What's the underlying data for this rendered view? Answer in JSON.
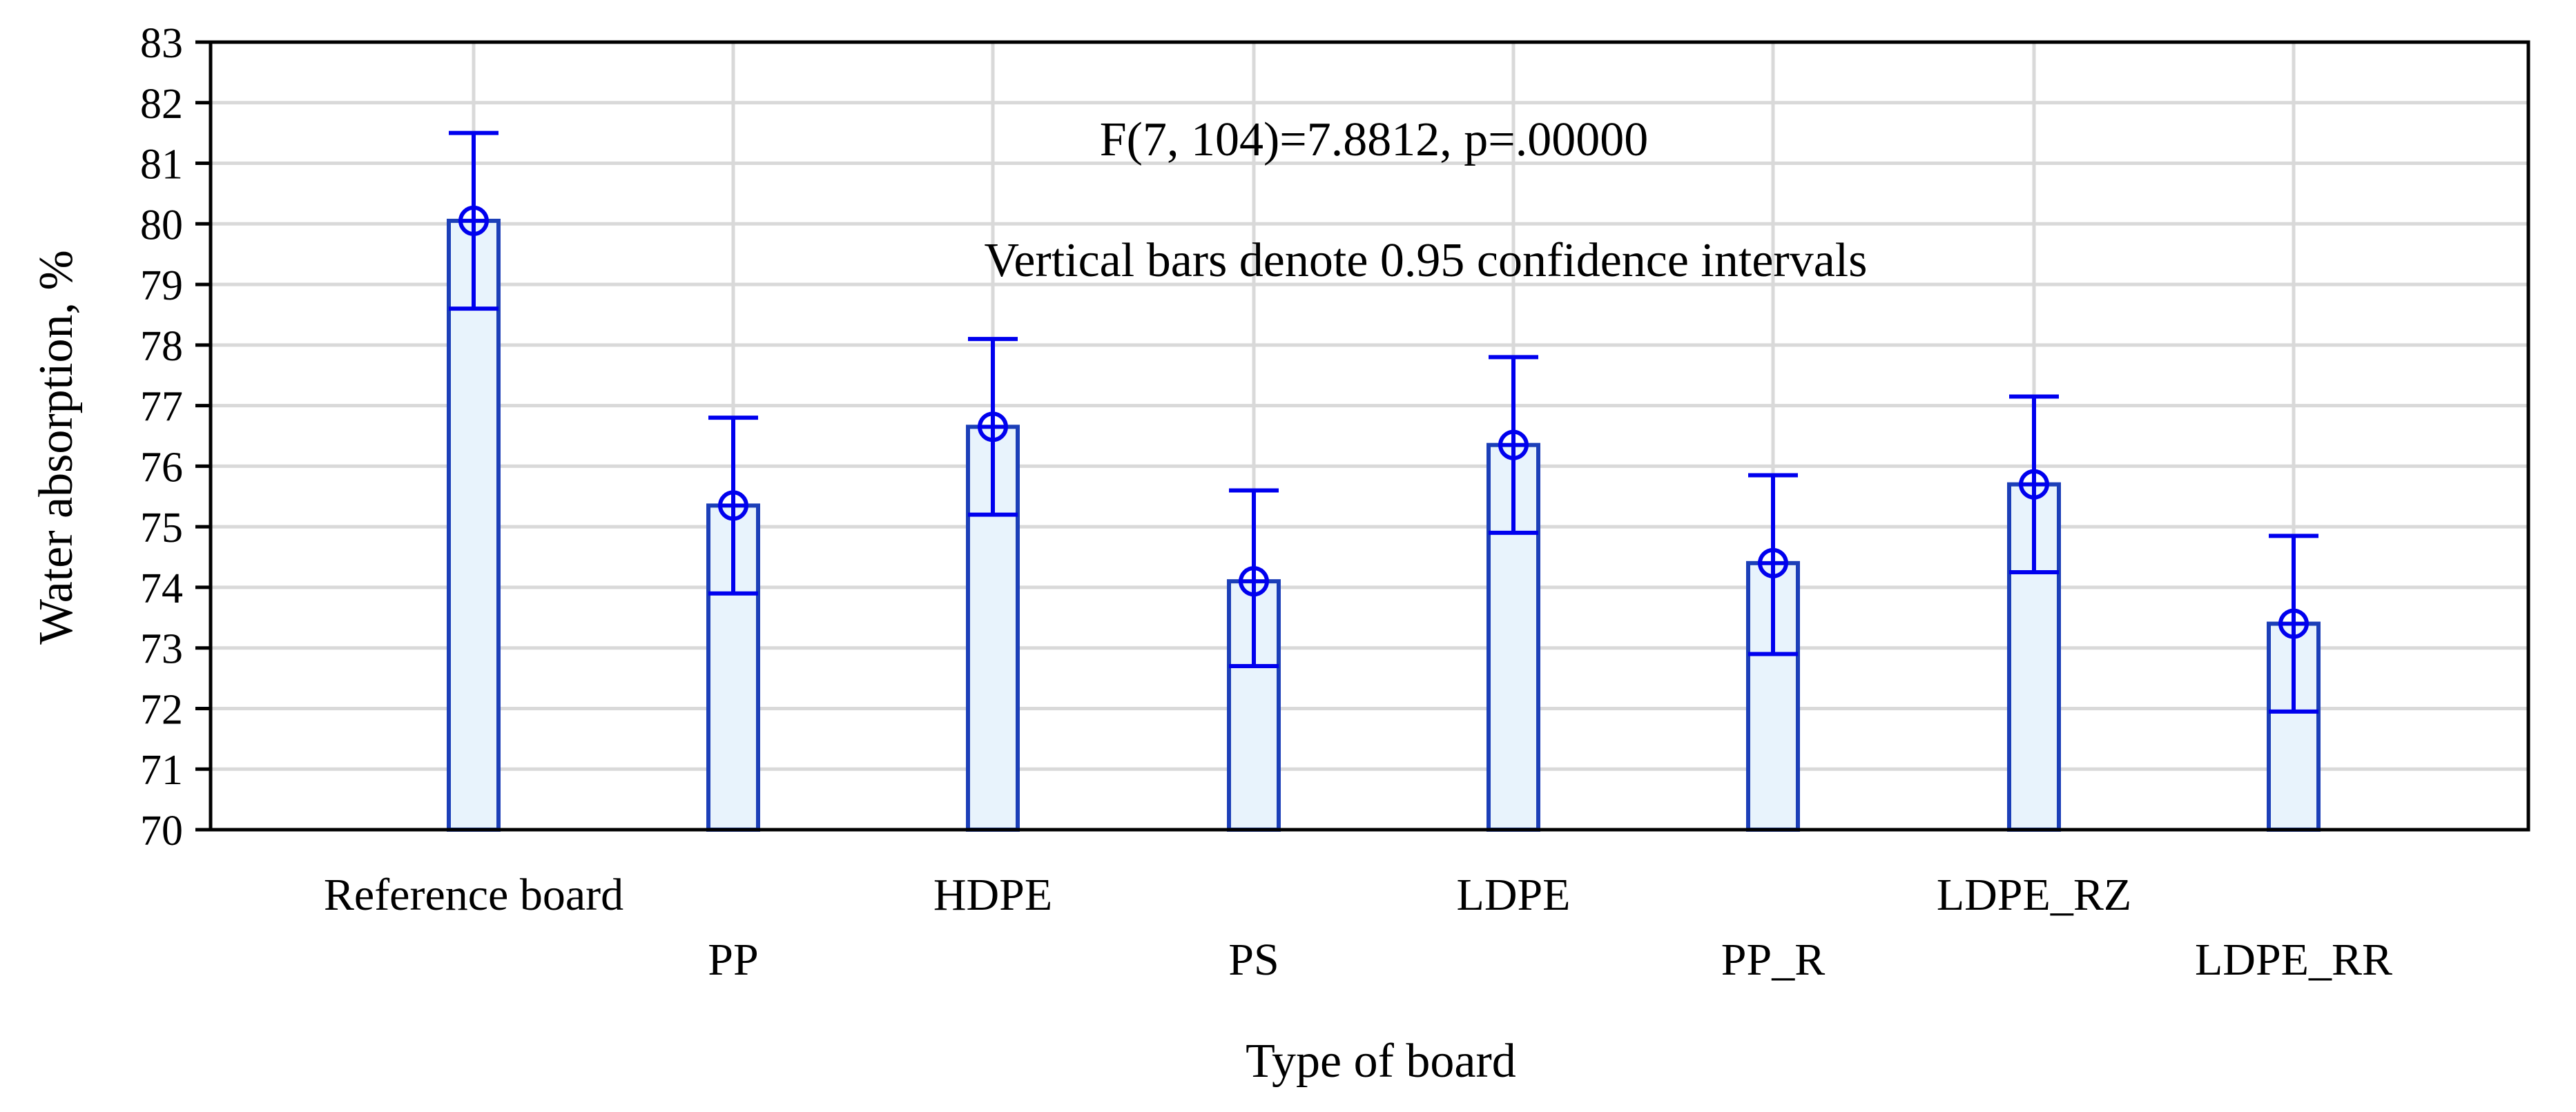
{
  "chart_data": {
    "type": "bar",
    "title": "",
    "xlabel": "Type of board",
    "ylabel": "Water absorption, %",
    "ylim": [
      70,
      83
    ],
    "yticks": [
      "70",
      "71",
      "72",
      "73",
      "74",
      "75",
      "76",
      "77",
      "78",
      "79",
      "80",
      "81",
      "82",
      "83"
    ],
    "grid": true,
    "categories": [
      "Reference board",
      "PP",
      "HDPE",
      "PS",
      "LDPE",
      "PP_R",
      "LDPE_RZ",
      "LDPE_RR"
    ],
    "values": [
      80.05,
      75.35,
      76.65,
      74.1,
      76.35,
      74.4,
      75.7,
      73.4
    ],
    "ci_lower": [
      78.6,
      73.9,
      75.2,
      72.7,
      74.9,
      72.9,
      74.25,
      71.95
    ],
    "ci_upper": [
      81.5,
      76.8,
      78.1,
      75.6,
      77.8,
      75.85,
      77.15,
      74.85
    ],
    "annotations": [
      "F(7, 104)=7.8812, p=.00000",
      "Vertical bars denote 0.95 confidence intervals"
    ],
    "colors": {
      "bar_stroke": "#1c3fb8",
      "bar_fill": "#e8f3fc",
      "error": "#0000ee",
      "grid": "#d9d9d9"
    }
  }
}
